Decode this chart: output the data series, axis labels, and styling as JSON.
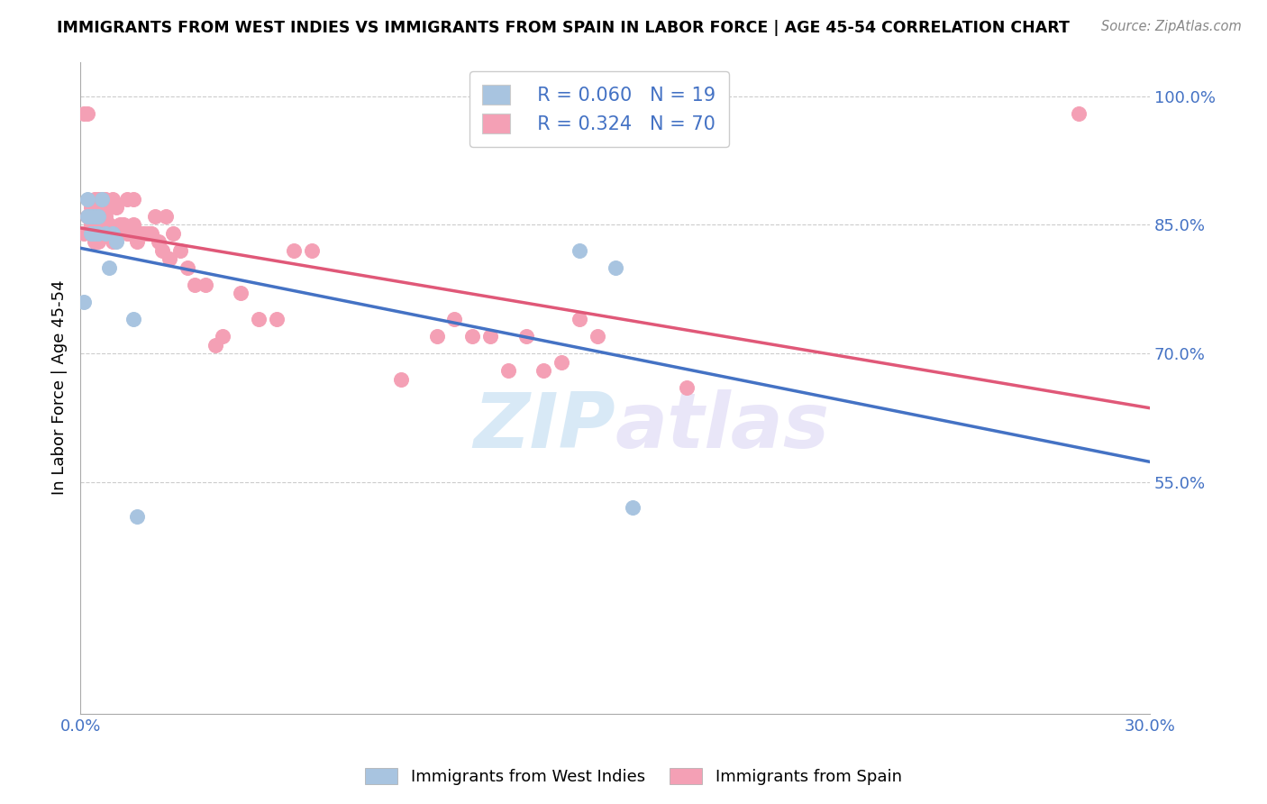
{
  "title": "IMMIGRANTS FROM WEST INDIES VS IMMIGRANTS FROM SPAIN IN LABOR FORCE | AGE 45-54 CORRELATION CHART",
  "source": "Source: ZipAtlas.com",
  "ylabel": "In Labor Force | Age 45-54",
  "xlim": [
    0.0,
    0.3
  ],
  "ylim": [
    0.28,
    1.04
  ],
  "xticks": [
    0.0,
    0.05,
    0.1,
    0.15,
    0.2,
    0.25,
    0.3
  ],
  "xticklabels": [
    "0.0%",
    "",
    "",
    "",
    "",
    "",
    "30.0%"
  ],
  "yticks_right": [
    1.0,
    0.85,
    0.7,
    0.55
  ],
  "ytick_labels_right": [
    "100.0%",
    "85.0%",
    "70.0%",
    "55.0%"
  ],
  "legend_r1": "R = 0.060",
  "legend_n1": "N = 19",
  "legend_r2": "R = 0.324",
  "legend_n2": "N = 70",
  "blue_color": "#a8c4e0",
  "pink_color": "#f4a0b5",
  "blue_line_color": "#4472c4",
  "pink_line_color": "#e05878",
  "watermark_zip": "ZIP",
  "watermark_atlas": "atlas",
  "legend_label1": "Immigrants from West Indies",
  "legend_label2": "Immigrants from Spain",
  "blue_x": [
    0.001,
    0.002,
    0.002,
    0.003,
    0.003,
    0.004,
    0.004,
    0.005,
    0.005,
    0.006,
    0.007,
    0.008,
    0.009,
    0.01,
    0.015,
    0.016,
    0.14,
    0.15,
    0.155
  ],
  "blue_y": [
    0.76,
    0.86,
    0.88,
    0.84,
    0.86,
    0.84,
    0.86,
    0.84,
    0.86,
    0.88,
    0.84,
    0.8,
    0.84,
    0.83,
    0.74,
    0.51,
    0.82,
    0.8,
    0.52
  ],
  "pink_x": [
    0.001,
    0.001,
    0.002,
    0.002,
    0.003,
    0.003,
    0.003,
    0.003,
    0.003,
    0.004,
    0.004,
    0.004,
    0.004,
    0.005,
    0.005,
    0.005,
    0.006,
    0.006,
    0.006,
    0.007,
    0.007,
    0.007,
    0.008,
    0.008,
    0.009,
    0.009,
    0.01,
    0.01,
    0.011,
    0.012,
    0.013,
    0.013,
    0.014,
    0.015,
    0.015,
    0.016,
    0.017,
    0.018,
    0.019,
    0.02,
    0.021,
    0.022,
    0.023,
    0.024,
    0.025,
    0.026,
    0.028,
    0.03,
    0.032,
    0.035,
    0.038,
    0.04,
    0.045,
    0.05,
    0.055,
    0.06,
    0.065,
    0.09,
    0.1,
    0.105,
    0.11,
    0.115,
    0.12,
    0.125,
    0.13,
    0.135,
    0.14,
    0.145,
    0.17,
    0.28
  ],
  "pink_y": [
    0.98,
    0.84,
    0.98,
    0.86,
    0.84,
    0.87,
    0.86,
    0.84,
    0.85,
    0.88,
    0.85,
    0.84,
    0.83,
    0.88,
    0.86,
    0.83,
    0.88,
    0.87,
    0.84,
    0.88,
    0.86,
    0.84,
    0.87,
    0.85,
    0.88,
    0.83,
    0.87,
    0.84,
    0.85,
    0.85,
    0.88,
    0.84,
    0.84,
    0.88,
    0.85,
    0.83,
    0.84,
    0.84,
    0.84,
    0.84,
    0.86,
    0.83,
    0.82,
    0.86,
    0.81,
    0.84,
    0.82,
    0.8,
    0.78,
    0.78,
    0.71,
    0.72,
    0.77,
    0.74,
    0.74,
    0.82,
    0.82,
    0.67,
    0.72,
    0.74,
    0.72,
    0.72,
    0.68,
    0.72,
    0.68,
    0.69,
    0.74,
    0.72,
    0.66,
    0.98
  ]
}
